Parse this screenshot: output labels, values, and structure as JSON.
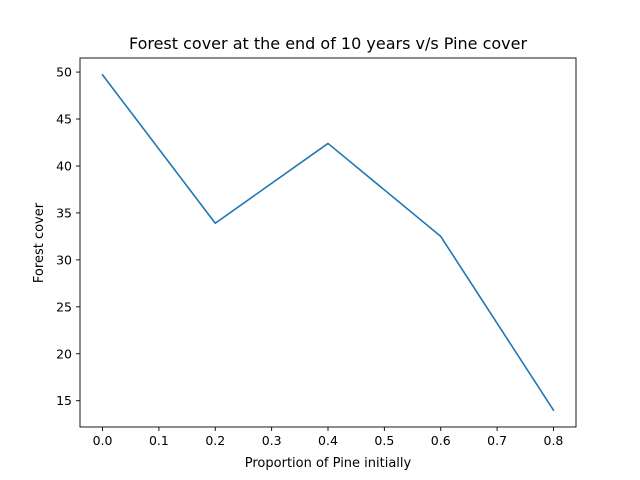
{
  "chart_data": {
    "type": "line",
    "title": "Forest cover at the end of 10 years v/s Pine cover",
    "xlabel": "Proportion of Pine initially",
    "ylabel": "Forest cover",
    "x": [
      0.0,
      0.2,
      0.4,
      0.6,
      0.8
    ],
    "series": [
      {
        "values": [
          49.7,
          33.9,
          42.4,
          32.5,
          14.0
        ],
        "color": "#1f77b4"
      }
    ],
    "xlim": [
      -0.04,
      0.84
    ],
    "ylim": [
      12.2,
      51.5
    ],
    "xticks": [
      0.0,
      0.1,
      0.2,
      0.3,
      0.4,
      0.5,
      0.6,
      0.7,
      0.8
    ],
    "xtick_labels": [
      "0.0",
      "0.1",
      "0.2",
      "0.3",
      "0.4",
      "0.5",
      "0.6",
      "0.7",
      "0.8"
    ],
    "yticks": [
      15,
      20,
      25,
      30,
      35,
      40,
      45,
      50
    ],
    "ytick_labels": [
      "15",
      "20",
      "25",
      "30",
      "35",
      "40",
      "45",
      "50"
    ],
    "grid": false,
    "legend": "none"
  }
}
